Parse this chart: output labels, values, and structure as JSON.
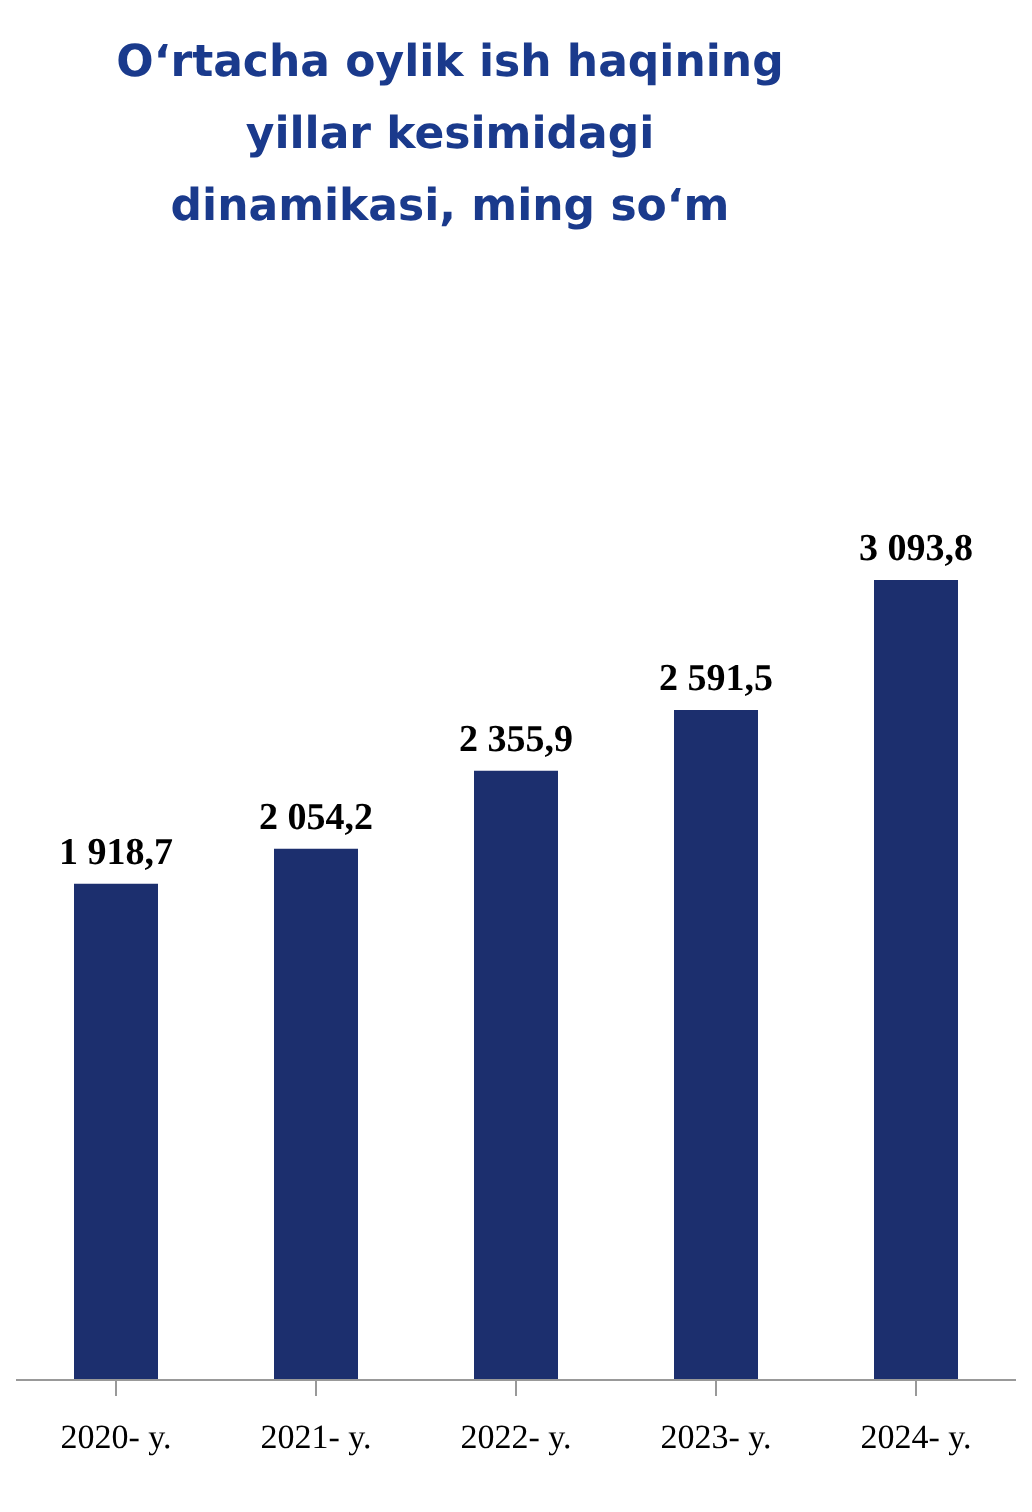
{
  "chart_data": {
    "type": "bar",
    "title": "O‘rtacha oylik ish haqining yillar kesimidagi dinamikasi, ming so‘m",
    "categories": [
      "2020- y.",
      "2021- y.",
      "2022- y.",
      "2023- y.",
      "2024- y."
    ],
    "values": [
      1918.7,
      2054.2,
      2355.9,
      2591.5,
      3093.8
    ],
    "value_labels": [
      "1 918,7",
      "2 054,2",
      "2 355,9",
      "2 591,5",
      "3 093,8"
    ],
    "color": "#1c2f6e",
    "grid": false,
    "legend": false
  }
}
